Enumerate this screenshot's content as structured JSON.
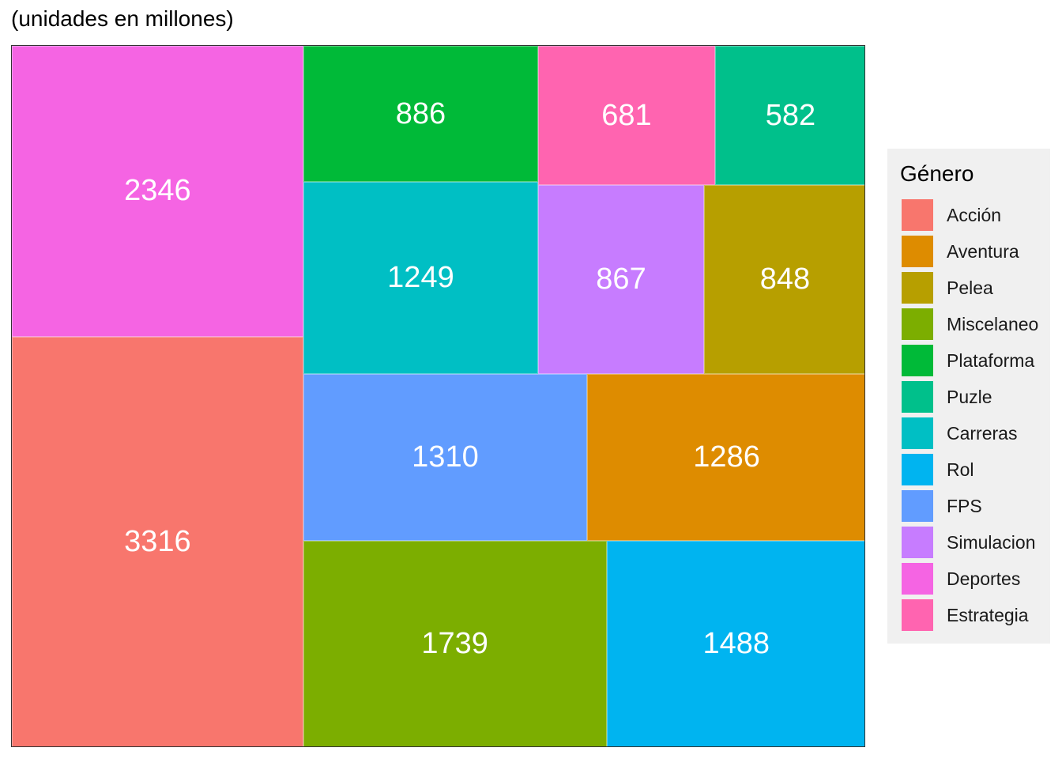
{
  "subtitle": "(unidades en millones)",
  "legend": {
    "title": "Género",
    "placement": "right"
  },
  "chart_data": {
    "type": "treemap",
    "title": "",
    "subtitle": "(unidades en millones)",
    "legend_title": "Género",
    "items": [
      {
        "name": "Acción",
        "value": 3316,
        "color": "#F8766D"
      },
      {
        "name": "Aventura",
        "value": 1286,
        "color": "#DE8C00"
      },
      {
        "name": "Pelea",
        "value": 848,
        "color": "#B79F00"
      },
      {
        "name": "Miscelaneo",
        "value": 1739,
        "color": "#7CAE00"
      },
      {
        "name": "Plataforma",
        "value": 886,
        "color": "#00BA38"
      },
      {
        "name": "Puzle",
        "value": 582,
        "color": "#00C08B"
      },
      {
        "name": "Carreras",
        "value": 1249,
        "color": "#00BFC4"
      },
      {
        "name": "Rol",
        "value": 1488,
        "color": "#00B4F0"
      },
      {
        "name": "FPS",
        "value": 1310,
        "color": "#619CFF"
      },
      {
        "name": "Simulacion",
        "value": 867,
        "color": "#C77CFF"
      },
      {
        "name": "Deportes",
        "value": 2346,
        "color": "#F564E3"
      },
      {
        "name": "Estrategia",
        "value": 681,
        "color": "#FF64B0"
      }
    ]
  }
}
